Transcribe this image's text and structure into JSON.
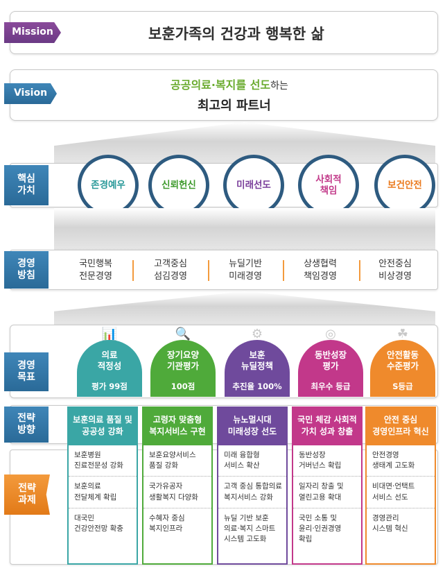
{
  "mission": {
    "tag": "Mission",
    "text": "보훈가족의 건강과 행복한 삶"
  },
  "vision": {
    "tag": "Vision",
    "line1_green": "공공의료·복지를 선도",
    "line1_suffix": "하는",
    "line2": "최고의 파트너"
  },
  "core_values": {
    "tag": "핵심\n가치",
    "items": [
      "존경예우",
      "신뢰헌신",
      "미래선도",
      "사회적\n책임",
      "보건안전"
    ]
  },
  "policy": {
    "tag": "경영\n방침",
    "items": [
      "국민행복\n전문경영",
      "고객중심\n섬김경영",
      "뉴딜기반\n미래경영",
      "상생협력\n책임경영",
      "안전중심\n비상경영"
    ]
  },
  "goals": {
    "tag": "경영\n목표",
    "items": [
      {
        "title": "의료\n적정성",
        "value": "평가 99점"
      },
      {
        "title": "장기요양\n기관평가",
        "value": "100점"
      },
      {
        "title": "보훈\n뉴딜정책",
        "value": "추진율 100%"
      },
      {
        "title": "동반성장\n평가",
        "value": "최우수 등급"
      },
      {
        "title": "안전활동\n수준평가",
        "value": "S등급"
      }
    ]
  },
  "directions": {
    "tag": "전략\n방향",
    "items": [
      "보훈의료 품질 및\n공공성 강화",
      "고령자 맞춤형\n복지서비스 구현",
      "뉴노멀시대\n미래성장 선도",
      "국민 체감 사회적\n가치 성과 창출",
      "안전 중심\n경영인프라 혁신"
    ]
  },
  "tasks": {
    "tag": "전략\n과제",
    "columns": [
      [
        "보훈병원\n진료전문성 강화",
        "보훈의료\n전달체계 확립",
        "대국민\n건강안전망 확충"
      ],
      [
        "보훈요양서비스\n품질 강화",
        "국가유공자\n생활복지 다양화",
        "수혜자 중심\n복지인프라"
      ],
      [
        "미래 융합형\n서비스 확산",
        "고객 중심 통합의료\n복지서비스 강화",
        "뉴딜 기반 보훈\n의료·복지 스마트\n시스템 고도화"
      ],
      [
        "동반성장\n거버넌스 확립",
        "일자리 창출 및\n열린고용 확대",
        "국민 소통 및\n윤리·인권경영\n확립"
      ],
      [
        "안전경영\n생태계 고도화",
        "비대면·언택트\n서비스 선도",
        "경영관리\n시스템 혁신"
      ]
    ]
  },
  "colors": {
    "goal_columns": [
      "#3aa6a5",
      "#4faa3a",
      "#6f4a9c",
      "#c2388a",
      "#ef8a2c"
    ],
    "circle_text": [
      "#2b9a9a",
      "#3e9a2c",
      "#7a3e9a",
      "#c23a8a",
      "#ea7a1e"
    ]
  }
}
